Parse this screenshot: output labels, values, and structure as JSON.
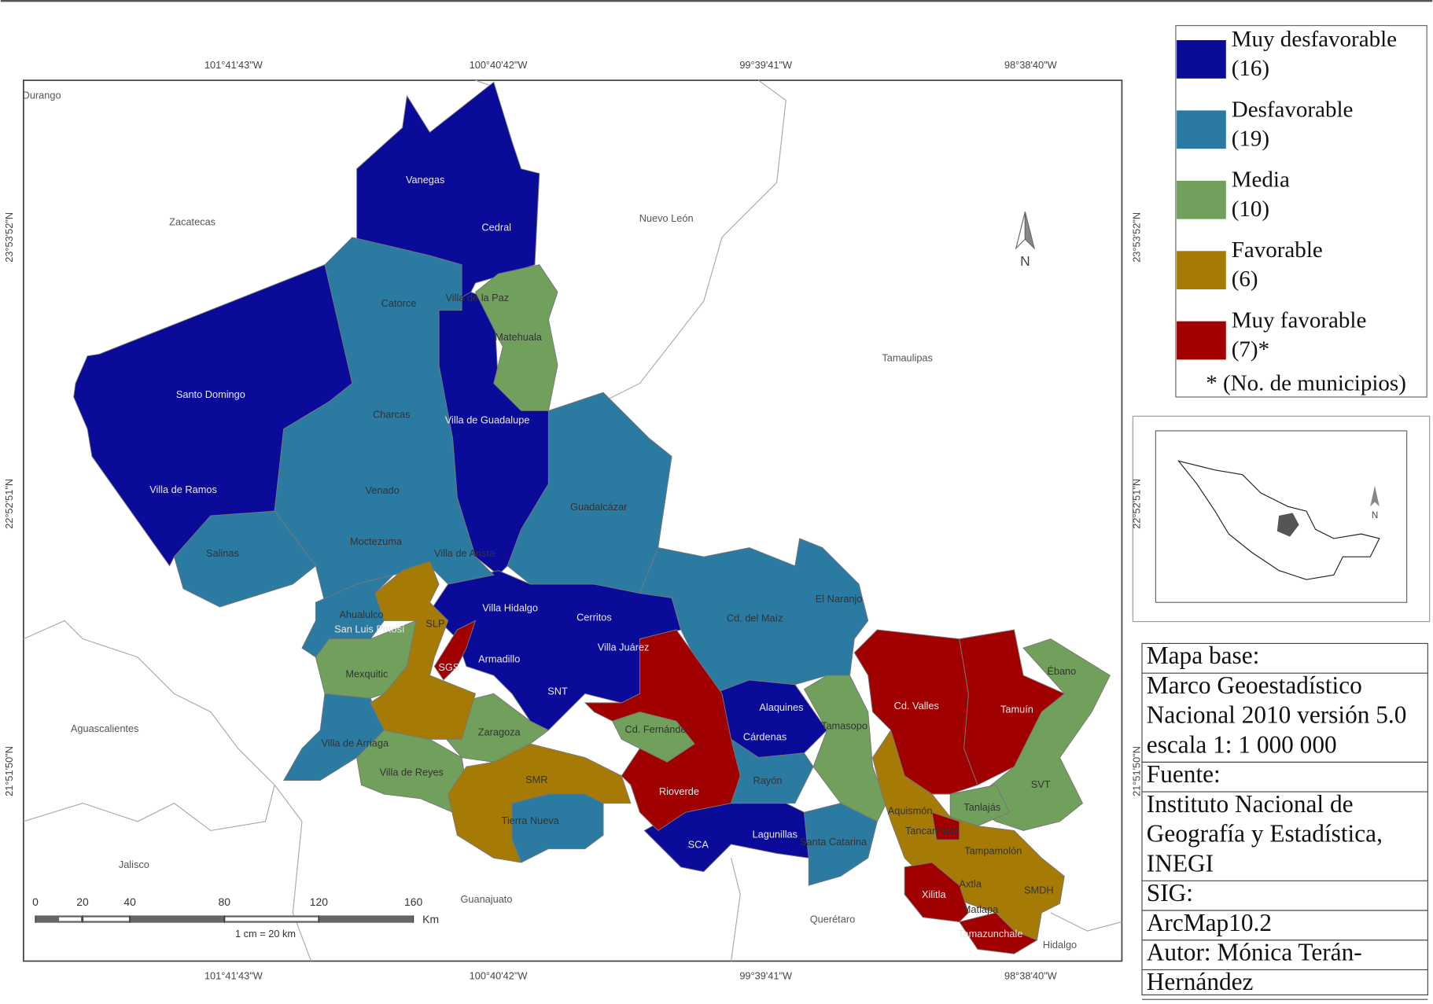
{
  "coordinates": {
    "longitudes": [
      "101°41'43\"W",
      "100°40'42\"W",
      "99°39'41\"W",
      "98°38'40\"W"
    ],
    "latitudes": [
      "23°53'52\"N",
      "22°52'51\"N",
      "21°51'50\"N"
    ]
  },
  "regions": [
    "Durango",
    "Zacatecas",
    "Nuevo León",
    "Tamaulipas",
    "Aguascalientes",
    "Jalisco",
    "Guanajuato",
    "Querétaro",
    "Hidalgo"
  ],
  "municipalities": [
    "Vanegas",
    "Cedral",
    "Catorce",
    "Villa de la Paz",
    "Matehuala",
    "Santo Domingo",
    "Charcas",
    "Villa de Guadalupe",
    "Villa de Ramos",
    "Venado",
    "Guadalcázar",
    "Salinas",
    "Moctezuma",
    "Villa de Arista",
    "El Naranjo",
    "Villa Hidalgo",
    "Cerritos",
    "Ahualulco",
    "San Luis Potosí",
    "SLP",
    "Cd. del Maíz",
    "Villa Juárez",
    "Armadillo",
    "SGS",
    "Mexquitic",
    "Ébano",
    "SNT",
    "Alaquines",
    "Cd. Valles",
    "Tamuín",
    "Cd. Fernández",
    "Zaragoza",
    "Cárdenas",
    "Tamasopo",
    "Villa de Arriaga",
    "Villa de Reyes",
    "SMR",
    "Rayón",
    "SVT",
    "Rioverde",
    "Tanlajás",
    "Aquismón",
    "Tierra Nueva",
    "Tancanhuitz",
    "SCA",
    "Lagunillas",
    "Santa Catarina",
    "Tampamolón",
    "Axtla",
    "SMDH",
    "Xilitla",
    "Matlapa",
    "Tamazunchale"
  ],
  "north": "N",
  "scale_bar": {
    "ticks": [
      0,
      20,
      40,
      80,
      120,
      160
    ],
    "unit": "Km",
    "note": "1 cm = 20 km"
  },
  "legend": {
    "items": [
      {
        "label": "Muy desfavorable",
        "count": "(16)",
        "color": "#0b0b9a"
      },
      {
        "label": "Desfavorable",
        "count": "(19)",
        "color": "#2a7aa2"
      },
      {
        "label": "Media",
        "count": "(10)",
        "color": "#70a05c"
      },
      {
        "label": "Favorable",
        "count": "(6)",
        "color": "#a57b05"
      },
      {
        "label": "Muy favorable",
        "count": "(7)*",
        "color": "#a00000"
      }
    ],
    "footnote": "* (No. de municipios)"
  },
  "info_box": {
    "sections": [
      [
        "Mapa base:",
        "Marco Geoestadístico",
        "Nacional 2010 versión 5.0",
        "escala 1: 1 000 000"
      ],
      [
        "Fuente:",
        "Instituto Nacional de",
        "Geografía y Estadística,",
        "INEGI"
      ],
      [
        "SIG:",
        "ArcMap10.2"
      ],
      [
        "Autor: Mónica Terán-",
        "Hernández"
      ]
    ]
  }
}
